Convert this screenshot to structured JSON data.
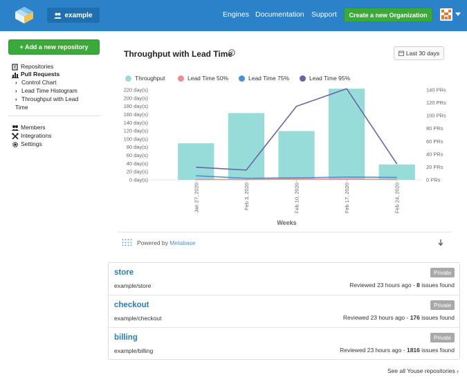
{
  "header": {
    "org_label": "example",
    "nav": [
      "Engines",
      "Documentation",
      "Support"
    ],
    "create_org_label": "Create a new Organization"
  },
  "sidebar": {
    "add_repo_label": "+ Add a new repository",
    "items": [
      {
        "label": "Repositories",
        "icon": "repositories-icon"
      },
      {
        "label": "Pull Requests",
        "icon": "bar-chart-icon"
      },
      {
        "label": "Control Chart"
      },
      {
        "label": "Lead Time Histogram"
      },
      {
        "label": "Throughput with Lead"
      },
      {
        "label": "Time"
      },
      {
        "label": "Members",
        "icon": "members-icon"
      },
      {
        "label": "Integrations",
        "icon": "wrench-icon"
      },
      {
        "label": "Settings",
        "icon": "gear-icon"
      }
    ]
  },
  "chart_card": {
    "title": "Throughput with Lead Time",
    "range_label": "Last 30 days",
    "powered_prefix": "Powered by",
    "powered_brand": "Metabase"
  },
  "chart_data": {
    "type": "bar",
    "title": "Throughput with Lead Time",
    "xlabel": "Weeks",
    "categories": [
      "Jan 27, 2020",
      "Feb 3, 2020",
      "Feb 10, 2020",
      "Feb 17, 2020",
      "Feb 24, 2020"
    ],
    "y_left": {
      "ticks": [
        "220 day(s)",
        "200 day(s)",
        "180 day(s)",
        "160 day(s)",
        "140 day(s)",
        "120 day(s)",
        "100 day(s)",
        "80 day(s)",
        "60 day(s)",
        "40 day(s)",
        "20 day(s)",
        "0 day(s)"
      ],
      "ylim": [
        0,
        220
      ]
    },
    "y_right": {
      "ticks": [
        "140 PRs",
        "120 PRs",
        "100 PRs",
        "80 PRs",
        "60 PRs",
        "40 PRs",
        "20 PRs",
        "0 PRs"
      ],
      "ylim": [
        0,
        140
      ]
    },
    "series": [
      {
        "name": "Throughput",
        "kind": "bar",
        "axis": "right",
        "color": "#98dcd9",
        "values": [
          57,
          104,
          76,
          142,
          24
        ]
      },
      {
        "name": "Lead Time 50%",
        "kind": "line",
        "axis": "left",
        "color": "#f08c8c",
        "values": [
          1,
          1,
          2,
          2,
          1
        ]
      },
      {
        "name": "Lead Time 75%",
        "kind": "line",
        "axis": "left",
        "color": "#4a90d9",
        "values": [
          10,
          4,
          5,
          7,
          6
        ]
      },
      {
        "name": "Lead Time 95%",
        "kind": "line",
        "axis": "left",
        "color": "#6b62a8",
        "values": [
          31,
          24,
          180,
          223,
          39
        ]
      }
    ],
    "legend_position": "top"
  },
  "repos": [
    {
      "name": "store",
      "path": "example/store",
      "badge": "Private",
      "reviewed": "Reviewed 23 hours ago -",
      "issues": "8",
      "issues_suffix": "issues found"
    },
    {
      "name": "checkout",
      "path": "example/checkout",
      "badge": "Private",
      "reviewed": "Reviewed 23 hours ago -",
      "issues": "176",
      "issues_suffix": "issues found"
    },
    {
      "name": "billing",
      "path": "example/billing",
      "badge": "Private",
      "reviewed": "Reviewed 23 hours ago -",
      "issues": "1816",
      "issues_suffix": "issues found"
    }
  ],
  "see_all_label": "See all Youse repositories ›"
}
